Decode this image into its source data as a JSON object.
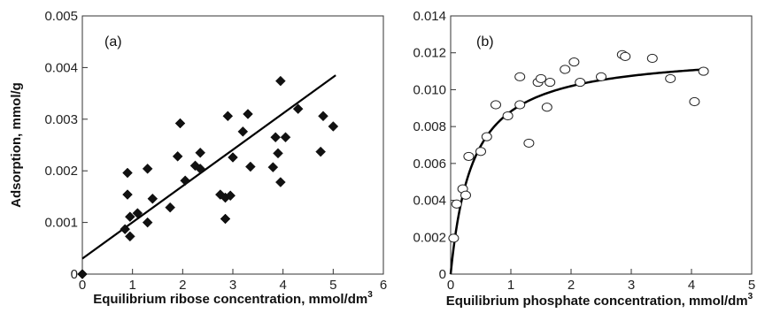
{
  "chart_data": [
    {
      "type": "scatter",
      "panel_label": "(a)",
      "title": "",
      "xlabel": "Equilibrium ribose concentration, mmol/dm",
      "xlabel_sup": "3",
      "ylabel": "Adsorption, mmol/g",
      "xlim": [
        0,
        6
      ],
      "ylim": [
        0,
        0.005
      ],
      "xticks": [
        "0",
        "1",
        "2",
        "3",
        "4",
        "5",
        "6"
      ],
      "yticks": [
        "0",
        "0.001",
        "0.002",
        "0.003",
        "0.004",
        "0.005"
      ],
      "marker": "filled-diamond",
      "fit": {
        "type": "linear",
        "x": [
          0,
          5.05
        ],
        "y": [
          0.0003,
          0.00385
        ]
      },
      "points": [
        {
          "x": 0.0,
          "y": 0.0
        },
        {
          "x": 0.85,
          "y": 0.00087
        },
        {
          "x": 0.9,
          "y": 0.00196
        },
        {
          "x": 0.9,
          "y": 0.00154
        },
        {
          "x": 0.95,
          "y": 0.00073
        },
        {
          "x": 0.95,
          "y": 0.00111
        },
        {
          "x": 1.1,
          "y": 0.00118
        },
        {
          "x": 1.3,
          "y": 0.00204
        },
        {
          "x": 1.3,
          "y": 0.001
        },
        {
          "x": 1.4,
          "y": 0.00146
        },
        {
          "x": 1.75,
          "y": 0.00129
        },
        {
          "x": 1.9,
          "y": 0.00228
        },
        {
          "x": 1.95,
          "y": 0.00292
        },
        {
          "x": 2.05,
          "y": 0.00181
        },
        {
          "x": 2.25,
          "y": 0.0021
        },
        {
          "x": 2.35,
          "y": 0.00204
        },
        {
          "x": 2.35,
          "y": 0.00235
        },
        {
          "x": 2.75,
          "y": 0.00154
        },
        {
          "x": 2.85,
          "y": 0.00107
        },
        {
          "x": 2.85,
          "y": 0.00148
        },
        {
          "x": 2.9,
          "y": 0.00306
        },
        {
          "x": 2.95,
          "y": 0.00152
        },
        {
          "x": 3.0,
          "y": 0.00226
        },
        {
          "x": 3.2,
          "y": 0.00276
        },
        {
          "x": 3.3,
          "y": 0.0031
        },
        {
          "x": 3.35,
          "y": 0.00208
        },
        {
          "x": 3.8,
          "y": 0.00207
        },
        {
          "x": 3.85,
          "y": 0.00265
        },
        {
          "x": 3.9,
          "y": 0.00234
        },
        {
          "x": 3.95,
          "y": 0.00178
        },
        {
          "x": 3.95,
          "y": 0.00374
        },
        {
          "x": 4.05,
          "y": 0.00265
        },
        {
          "x": 4.3,
          "y": 0.0032
        },
        {
          "x": 4.75,
          "y": 0.00237
        },
        {
          "x": 4.8,
          "y": 0.00306
        },
        {
          "x": 5.0,
          "y": 0.00286
        }
      ]
    },
    {
      "type": "scatter",
      "panel_label": "(b)",
      "title": "",
      "xlabel": "Equilibrium phosphate concentration, mmol/dm",
      "xlabel_sup": "3",
      "ylabel": "",
      "xlim": [
        0,
        5
      ],
      "ylim": [
        0,
        0.014
      ],
      "xticks": [
        "0",
        "1",
        "2",
        "3",
        "4",
        "5"
      ],
      "yticks": [
        "0",
        "0.002",
        "0.004",
        "0.006",
        "0.008",
        "0.010",
        "0.012",
        "0.014"
      ],
      "marker": "open-circle",
      "fit": {
        "type": "langmuir",
        "qmax": 0.01207,
        "K": 2.716,
        "x_range": [
          0,
          4.2
        ]
      },
      "points": [
        {
          "x": 0.05,
          "y": 0.00195
        },
        {
          "x": 0.1,
          "y": 0.0038
        },
        {
          "x": 0.2,
          "y": 0.00462
        },
        {
          "x": 0.25,
          "y": 0.00428
        },
        {
          "x": 0.3,
          "y": 0.00638
        },
        {
          "x": 0.5,
          "y": 0.00665
        },
        {
          "x": 0.6,
          "y": 0.00745
        },
        {
          "x": 0.75,
          "y": 0.00918
        },
        {
          "x": 0.95,
          "y": 0.00858
        },
        {
          "x": 1.15,
          "y": 0.00918
        },
        {
          "x": 1.15,
          "y": 0.0107
        },
        {
          "x": 1.3,
          "y": 0.0071
        },
        {
          "x": 1.45,
          "y": 0.0104
        },
        {
          "x": 1.5,
          "y": 0.0106
        },
        {
          "x": 1.6,
          "y": 0.00905
        },
        {
          "x": 1.65,
          "y": 0.0104
        },
        {
          "x": 1.9,
          "y": 0.0111
        },
        {
          "x": 2.05,
          "y": 0.0115
        },
        {
          "x": 2.15,
          "y": 0.0104
        },
        {
          "x": 2.5,
          "y": 0.0107
        },
        {
          "x": 2.85,
          "y": 0.0119
        },
        {
          "x": 2.9,
          "y": 0.0118
        },
        {
          "x": 3.35,
          "y": 0.0117
        },
        {
          "x": 3.65,
          "y": 0.0106
        },
        {
          "x": 4.05,
          "y": 0.00935
        },
        {
          "x": 4.2,
          "y": 0.011
        }
      ]
    }
  ]
}
